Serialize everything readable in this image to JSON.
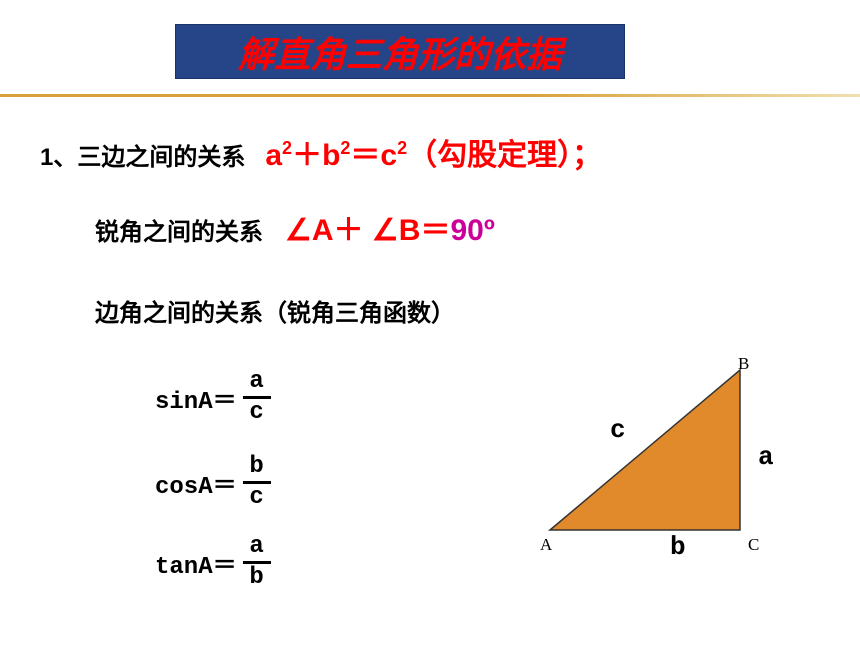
{
  "title": "解直角三角形的依据",
  "line1_label": "1、三边之间的关系",
  "pythagoras": {
    "a": "a",
    "b": "b",
    "c": "c",
    "plus": "＋",
    "eq": "＝",
    "note": "（勾股定理）；"
  },
  "line2_label": "锐角之间的关系",
  "angles": {
    "text_red": "∠A＋ ∠B＝",
    "ninety": "90º"
  },
  "line3_label": "边角之间的关系（锐角三角函数）",
  "trig": {
    "sin": {
      "fn": "sinA＝",
      "num": "a",
      "den": "c"
    },
    "cos": {
      "fn": "cosA＝",
      "num": "b",
      "den": "c"
    },
    "tan": {
      "fn": "tanA＝",
      "num": "a",
      "den": "b"
    }
  },
  "triangle": {
    "points": {
      "A": [
        10,
        170
      ],
      "B": [
        200,
        10
      ],
      "C": [
        200,
        170
      ]
    },
    "fill": "#e08a2c",
    "stroke": "#333333",
    "vertices": {
      "A": "A",
      "B": "B",
      "C": "C"
    },
    "sides": {
      "a": "a",
      "b": "b",
      "c": "c"
    },
    "vpos": {
      "A": [
        0,
        175
      ],
      "B": [
        198,
        -6
      ],
      "C": [
        208,
        175
      ]
    },
    "spos": {
      "c": [
        70,
        55
      ],
      "a": [
        218,
        82
      ],
      "b": [
        130,
        172
      ]
    }
  },
  "colors": {
    "title_bg": "#254588",
    "title_text": "#ff0000",
    "red": "#ff0000",
    "magenta": "#cc0099",
    "hr": "#d8a038"
  }
}
